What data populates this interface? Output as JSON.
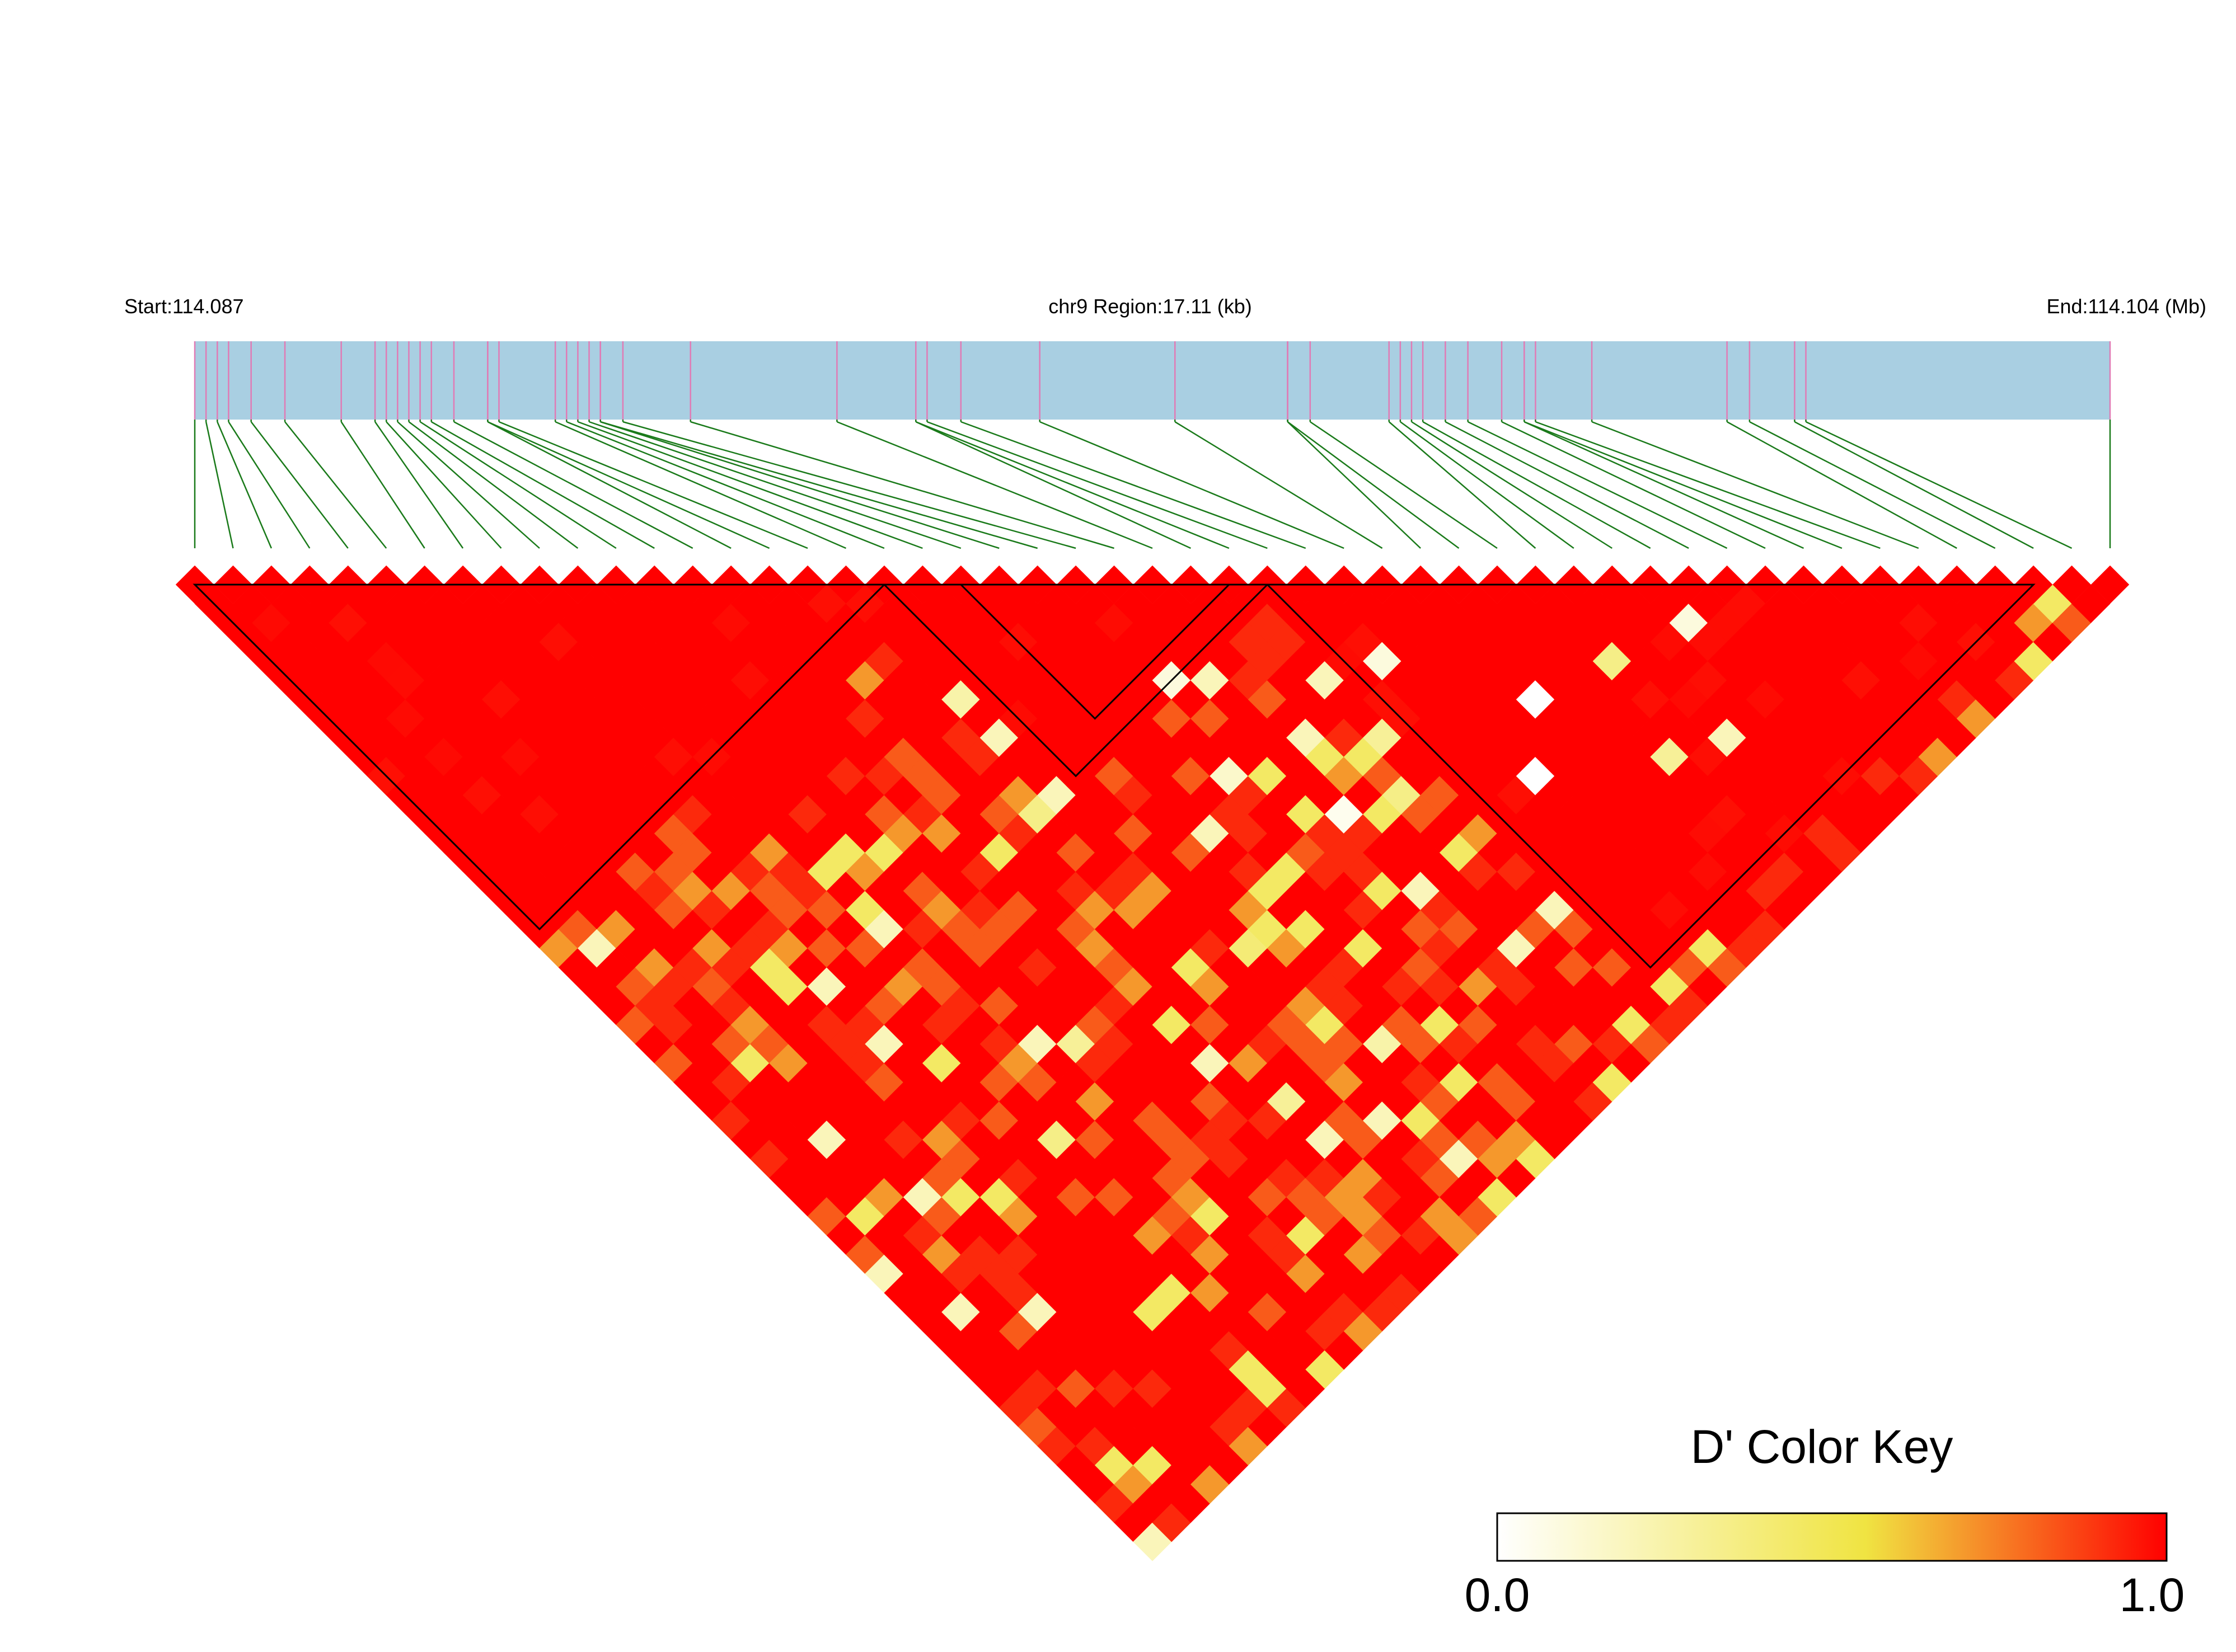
{
  "header": {
    "start_label": "Start:114.087",
    "region_label": "chr9 Region:17.11 (kb)",
    "end_label": "End:114.104 (Mb)"
  },
  "colors": {
    "track": "#a9cfe2",
    "snp_tick": "#e07bb5",
    "connector": "#1a7a1a",
    "ld_max": "#ff0000",
    "ld_mid": "#f0e442",
    "ld_min": "#ffffff",
    "block_outline": "#000000"
  },
  "key": {
    "title": "D' Color Key",
    "min_label": "0.0",
    "max_label": "1.0"
  },
  "chart_data": {
    "type": "heatmap",
    "metric": "D'",
    "region": {
      "chromosome": "chr9",
      "start_mb": 114.087,
      "end_mb": 114.104,
      "length_kb": 17.11
    },
    "snp_count": 51,
    "snp_positions_mb": [
      114.087,
      114.0871,
      114.0872,
      114.0873,
      114.0875,
      114.0878,
      114.0883,
      114.0886,
      114.0887,
      114.0888,
      114.0889,
      114.089,
      114.0891,
      114.0893,
      114.0896,
      114.0896,
      114.0897,
      114.0902,
      114.0903,
      114.0904,
      114.0905,
      114.0906,
      114.0906,
      114.0908,
      114.0914,
      114.0927,
      114.0934,
      114.0934,
      114.0935,
      114.0938,
      114.0945,
      114.0957,
      114.0967,
      114.0967,
      114.0969,
      114.0976,
      114.0977,
      114.0978,
      114.0979,
      114.0981,
      114.0983,
      114.0986,
      114.0988,
      114.0988,
      114.0989,
      114.0994,
      114.1006,
      114.1008,
      114.1012,
      114.1013,
      114.104
    ],
    "color_scale": {
      "min": 0.0,
      "max": 1.0,
      "stops": [
        "#ffffff",
        "#f0e442",
        "#ff0000"
      ]
    },
    "ld_blocks": [
      {
        "first_snp": 1,
        "last_snp": 19
      },
      {
        "first_snp": 19,
        "last_snp": 29
      },
      {
        "first_snp": 21,
        "last_snp": 28
      },
      {
        "first_snp": 29,
        "last_snp": 49
      }
    ],
    "low_dprime_pairs": [
      {
        "snp_i": 17,
        "snp_j": 29,
        "d_prime": 0.35
      },
      {
        "snp_i": 18,
        "snp_j": 24,
        "d_prime": 0.25
      },
      {
        "snp_i": 24,
        "snp_j": 29,
        "d_prime": 0.1
      },
      {
        "snp_i": 23,
        "snp_j": 33,
        "d_prime": 0.15
      },
      {
        "snp_i": 26,
        "snp_j": 34,
        "d_prime": 0.2
      },
      {
        "snp_i": 25,
        "snp_j": 37,
        "d_prime": 0.05
      },
      {
        "snp_i": 28,
        "snp_j": 36,
        "d_prime": 0.3
      },
      {
        "snp_i": 30,
        "snp_j": 34,
        "d_prime": 0.1
      },
      {
        "snp_i": 31,
        "snp_j": 41,
        "d_prime": 0.0
      },
      {
        "snp_i": 27,
        "snp_j": 38,
        "d_prime": 0.35
      },
      {
        "snp_i": 22,
        "snp_j": 41,
        "d_prime": 0.45
      },
      {
        "snp_i": 20,
        "snp_j": 44,
        "d_prime": 0.25
      },
      {
        "snp_i": 12,
        "snp_j": 36,
        "d_prime": 0.3
      },
      {
        "snp_i": 15,
        "snp_j": 40,
        "d_prime": 0.2
      },
      {
        "snp_i": 16,
        "snp_j": 43,
        "d_prime": 0.3
      },
      {
        "snp_i": 19,
        "snp_j": 38,
        "d_prime": 0.4
      },
      {
        "snp_i": 9,
        "snp_j": 38,
        "d_prime": 0.35
      },
      {
        "snp_i": 33,
        "snp_j": 39,
        "d_prime": 0.0
      },
      {
        "snp_i": 35,
        "snp_j": 44,
        "d_prime": 0.3
      },
      {
        "snp_i": 37,
        "snp_j": 45,
        "d_prime": 0.2
      },
      {
        "snp_i": 39,
        "snp_j": 41,
        "d_prime": 0.1
      },
      {
        "snp_i": 36,
        "snp_j": 40,
        "d_prime": 0.35
      }
    ]
  }
}
